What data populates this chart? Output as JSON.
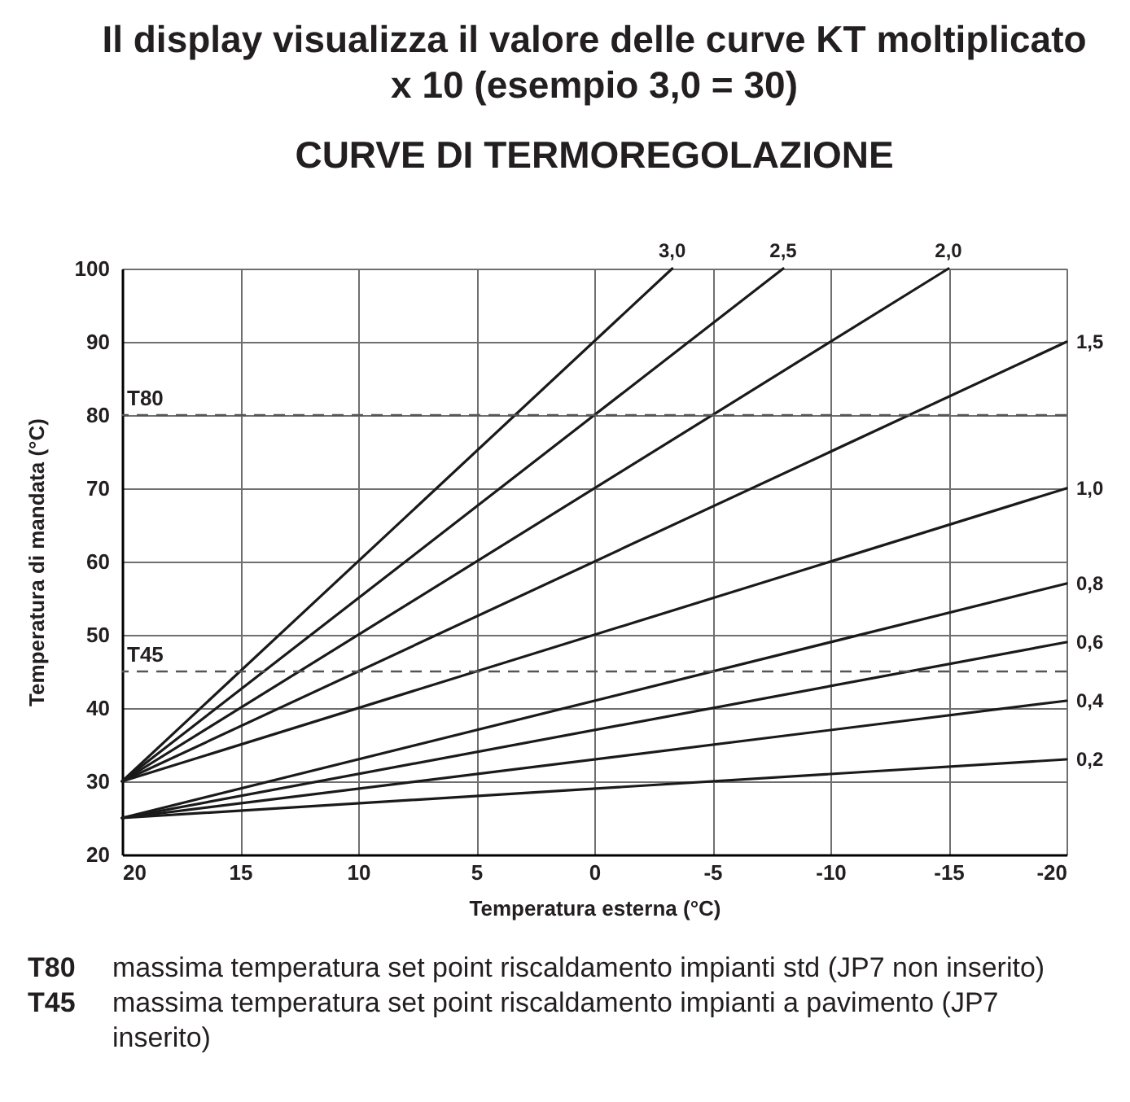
{
  "chart_data": {
    "type": "line",
    "title": "Il display visualizza il valore delle curve KT moltiplicato x 10 (esempio 3,0 = 30)",
    "subtitle": "CURVE DI TERMOREGOLAZIONE",
    "xlabel": "Temperatura esterna (°C)",
    "ylabel": "Temperatura di mandata (°C)",
    "xlim": [
      20,
      -20
    ],
    "xticks": [
      20,
      15,
      10,
      5,
      0,
      -5,
      -10,
      -15,
      -20
    ],
    "ylim": [
      20,
      100
    ],
    "yticks": [
      20,
      30,
      40,
      50,
      60,
      70,
      80,
      90,
      100
    ],
    "grid": true,
    "line_style": "solid",
    "series": [
      {
        "name": "3,0",
        "color": "#1a1a1a",
        "x": [
          20,
          -3.3
        ],
        "values": [
          30,
          100
        ]
      },
      {
        "name": "2,5",
        "color": "#1a1a1a",
        "x": [
          20,
          -8
        ],
        "values": [
          30,
          100
        ]
      },
      {
        "name": "2,0",
        "color": "#1a1a1a",
        "x": [
          20,
          -15
        ],
        "values": [
          30,
          100
        ]
      },
      {
        "name": "1,5",
        "color": "#1a1a1a",
        "x": [
          20,
          -20
        ],
        "values": [
          30,
          90
        ]
      },
      {
        "name": "1,0",
        "color": "#1a1a1a",
        "x": [
          20,
          -20
        ],
        "values": [
          30,
          70
        ]
      },
      {
        "name": "0,8",
        "color": "#1a1a1a",
        "x": [
          20,
          -20
        ],
        "values": [
          25,
          57
        ]
      },
      {
        "name": "0,6",
        "color": "#1a1a1a",
        "x": [
          20,
          -20
        ],
        "values": [
          25,
          49
        ]
      },
      {
        "name": "0,4",
        "color": "#1a1a1a",
        "x": [
          20,
          -20
        ],
        "values": [
          25,
          41
        ]
      },
      {
        "name": "0,2",
        "color": "#1a1a1a",
        "x": [
          20,
          -20
        ],
        "values": [
          25,
          33
        ]
      }
    ],
    "ref_lines": [
      {
        "axis": "y",
        "value": 80,
        "label": "T80",
        "color": "#555555",
        "line_style": "dashed"
      },
      {
        "axis": "y",
        "value": 45,
        "label": "T45",
        "color": "#555555",
        "line_style": "dashed"
      }
    ],
    "annotations": [
      "T80 massima temperatura set point riscaldamento impianti std (JP7 non inserito)",
      "T45 massima temperatura set point riscaldamento impianti a pavimento (JP7 inserito)"
    ]
  }
}
